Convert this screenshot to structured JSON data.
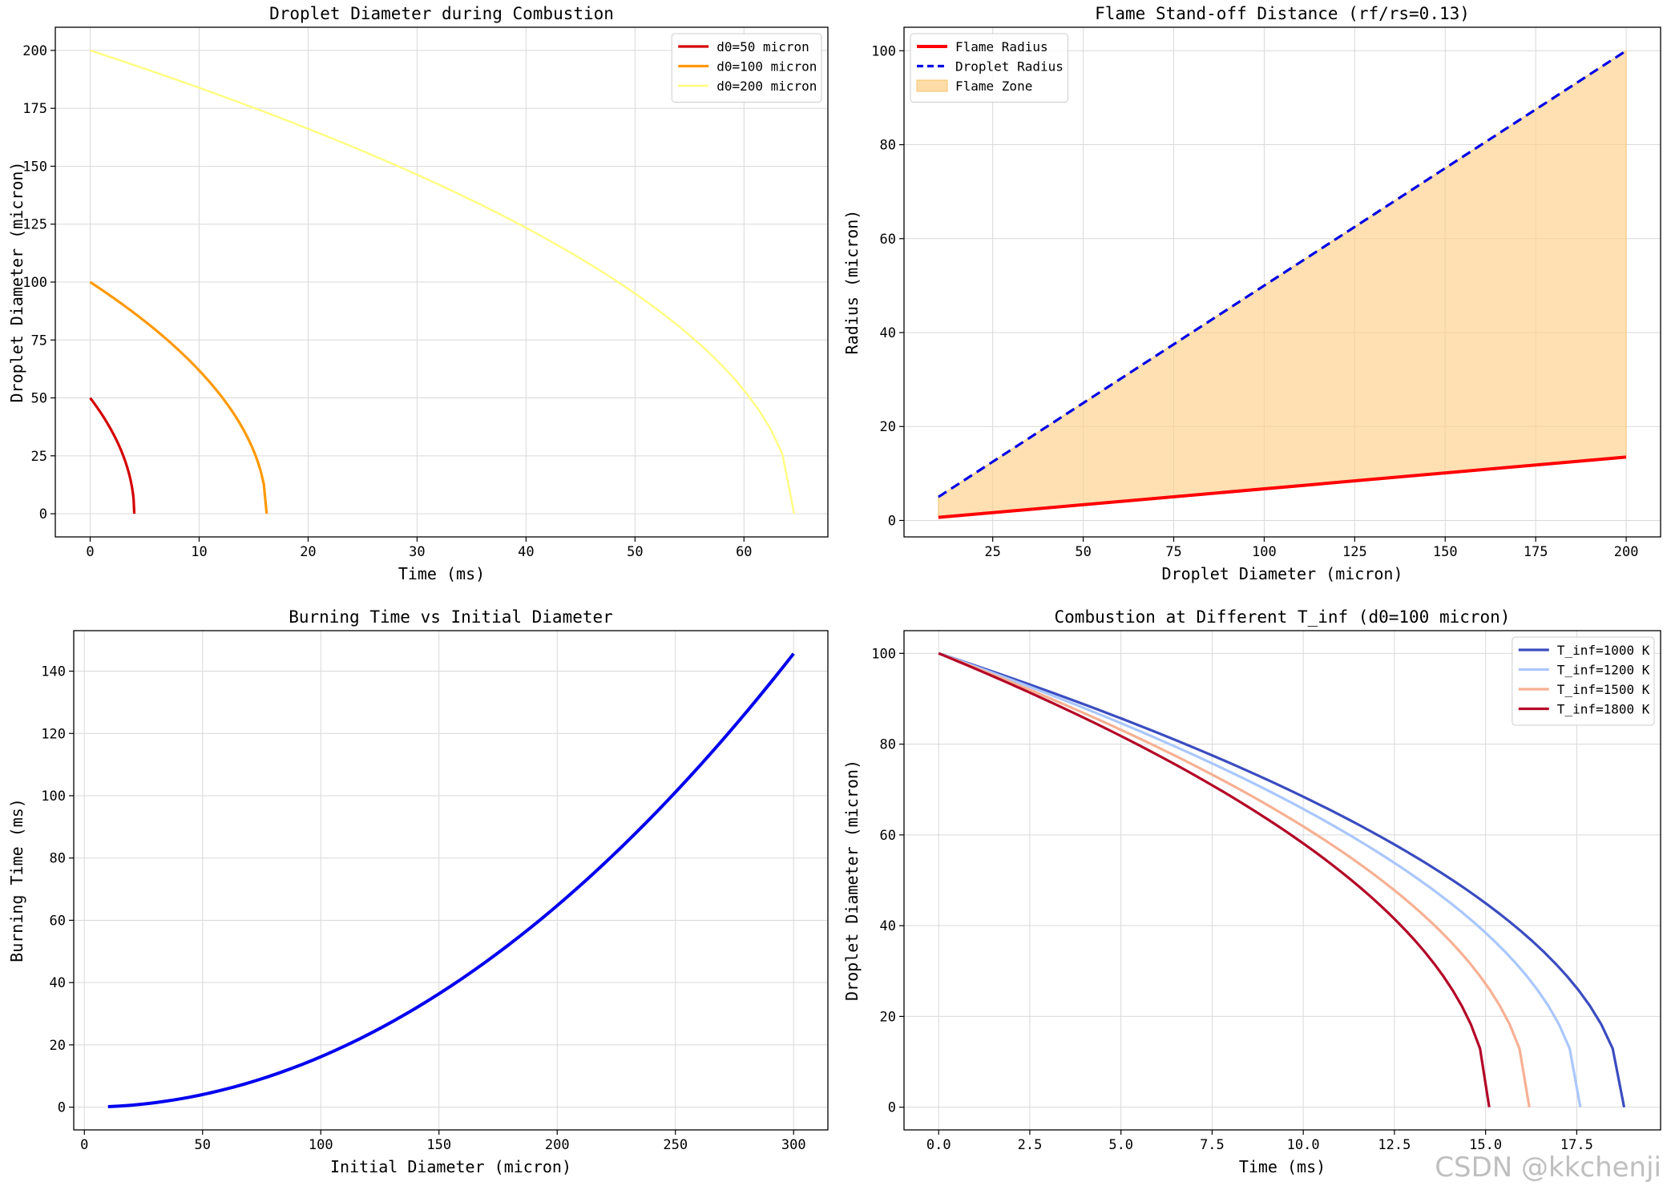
{
  "chart_data": [
    {
      "type": "line",
      "title": "Droplet Diameter during Combustion",
      "xlabel": "Time (ms)",
      "ylabel": "Droplet Diameter (micron)",
      "xlim": [
        -3.2,
        67.7
      ],
      "ylim": [
        -10,
        210
      ],
      "xticks": [
        0,
        10,
        20,
        30,
        40,
        50,
        60
      ],
      "yticks": [
        0,
        25,
        50,
        75,
        100,
        125,
        150,
        175,
        200
      ],
      "grid": true,
      "legend_position": "top-right",
      "series": [
        {
          "name": "d0=50 micron",
          "color": "#d40000",
          "width": 3.2,
          "kind": "d2law",
          "d0": 50,
          "tb": 4.05
        },
        {
          "name": "d0=100 micron",
          "color": "#ff9900",
          "width": 3.2,
          "kind": "d2law",
          "d0": 100,
          "tb": 16.2
        },
        {
          "name": "d0=200 micron",
          "color": "#ffff80",
          "width": 2.4,
          "kind": "d2law",
          "d0": 200,
          "tb": 64.6
        }
      ]
    },
    {
      "type": "line",
      "title": "Flame Stand-off Distance (rf/rs=0.13)",
      "xlabel": "Droplet Diameter (micron)",
      "ylabel": "Radius (micron)",
      "xlim": [
        0.5,
        209.5
      ],
      "ylim": [
        -3.5,
        105
      ],
      "xticks": [
        25,
        50,
        75,
        100,
        125,
        150,
        175,
        200
      ],
      "yticks": [
        0,
        20,
        40,
        60,
        80,
        100
      ],
      "grid": true,
      "legend_position": "top-left",
      "series": [
        {
          "name": "Flame Radius",
          "color": "#ff0000",
          "width": 4,
          "dash": "",
          "x": [
            10,
            200
          ],
          "y": [
            0.65,
            13.5
          ]
        },
        {
          "name": "Droplet Radius",
          "color": "#0000e6",
          "width": 3.2,
          "dash": "12,7",
          "x": [
            10,
            200
          ],
          "y": [
            5,
            100
          ]
        }
      ],
      "fill": {
        "name": "Flame Zone",
        "color": "#fdd08a",
        "opacity": 0.65,
        "edge": "#f7c56d",
        "x": [
          10,
          200
        ],
        "lower": [
          0.65,
          13.5
        ],
        "upper": [
          5,
          100
        ]
      }
    },
    {
      "type": "line",
      "title": "Burning Time vs Initial Diameter",
      "xlabel": "Initial Diameter (micron)",
      "ylabel": "Burning Time (ms)",
      "xlim": [
        -4.5,
        314.5
      ],
      "ylim": [
        -7.3,
        153
      ],
      "xticks": [
        0,
        50,
        100,
        150,
        200,
        250,
        300
      ],
      "yticks": [
        0,
        20,
        40,
        60,
        80,
        100,
        120,
        140
      ],
      "grid": true,
      "series": [
        {
          "name": "Burning Time",
          "color": "#0000ee",
          "width": 4,
          "kind": "square",
          "x0": 10,
          "x1": 300,
          "k": 0.001618
        }
      ]
    },
    {
      "type": "line",
      "title": "Combustion at Different T_inf (d0=100 micron)",
      "xlabel": "Time (ms)",
      "ylabel": "Droplet Diameter (micron)",
      "xlim": [
        -0.95,
        19.8
      ],
      "ylim": [
        -5,
        105
      ],
      "xticks": [
        0,
        2.5,
        5,
        7.5,
        10,
        12.5,
        15,
        17.5
      ],
      "xticklabels": [
        "0.0",
        "2.5",
        "5.0",
        "7.5",
        "10.0",
        "12.5",
        "15.0",
        "17.5"
      ],
      "yticks": [
        0,
        20,
        40,
        60,
        80,
        100
      ],
      "grid": true,
      "legend_position": "top-right",
      "series": [
        {
          "name": "T_inf=1000 K",
          "color": "#3b4cc0",
          "width": 3.2,
          "kind": "d2law",
          "d0": 100,
          "tb": 18.8
        },
        {
          "name": "T_inf=1200 K",
          "color": "#aac7fd",
          "width": 3.2,
          "kind": "d2law",
          "d0": 100,
          "tb": 17.6
        },
        {
          "name": "T_inf=1500 K",
          "color": "#f7b093",
          "width": 3.2,
          "kind": "d2law",
          "d0": 100,
          "tb": 16.2
        },
        {
          "name": "T_inf=1800 K",
          "color": "#b40426",
          "width": 3.2,
          "kind": "d2law",
          "d0": 100,
          "tb": 15.1
        }
      ]
    }
  ],
  "watermark": "CSDN @kkchenji"
}
